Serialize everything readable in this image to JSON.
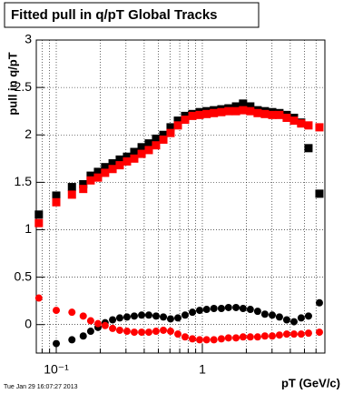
{
  "chart_data": {
    "type": "scatter",
    "title": "Fitted pull in q/pT  Global Tracks",
    "x_label": "pT (GeV/c)",
    "y_label": "pull in q/pT",
    "timestamp": "Tue Jan 29 16:07:27 2013",
    "x_log": true,
    "grid": true,
    "xlim": [
      0.073,
      6.9
    ],
    "ylim": [
      -0.3,
      3
    ],
    "xticks": [
      {
        "value": 0.1,
        "label": "10⁻¹"
      },
      1
    ],
    "xminor_ticks": [
      0.08,
      0.09,
      0.2,
      0.3,
      0.4,
      0.5,
      0.6,
      0.7,
      0.8,
      0.9,
      2,
      3,
      4,
      5,
      6
    ],
    "yticks": [
      0,
      {
        "value": 0.5,
        "label": "0.5"
      },
      1,
      {
        "value": 1.5,
        "label": "1.5"
      },
      2,
      {
        "value": 2.5,
        "label": "2.5"
      },
      3
    ],
    "x": [
      0.076,
      0.1,
      0.128,
      0.153,
      0.172,
      0.193,
      0.216,
      0.243,
      0.272,
      0.305,
      0.342,
      0.384,
      0.43,
      0.482,
      0.541,
      0.606,
      0.68,
      0.762,
      0.855,
      0.958,
      1.07,
      1.2,
      1.35,
      1.51,
      1.7,
      1.9,
      2.13,
      2.39,
      2.68,
      3.01,
      3.37,
      3.78,
      4.24,
      4.75,
      5.33,
      6.33
    ],
    "series": [
      {
        "color": "#000000",
        "marker": "square",
        "values": [
          1.16,
          1.36,
          1.45,
          1.48,
          1.57,
          1.61,
          1.66,
          1.7,
          1.74,
          1.77,
          1.82,
          1.87,
          1.91,
          1.96,
          2.0,
          2.08,
          2.15,
          2.2,
          2.22,
          2.24,
          2.25,
          2.26,
          2.27,
          2.28,
          2.3,
          2.33,
          2.3,
          2.26,
          2.25,
          2.24,
          2.23,
          2.21,
          2.18,
          2.13,
          1.86,
          1.38
        ]
      },
      {
        "color": "#ff0000",
        "marker": "square",
        "values": [
          1.07,
          1.29,
          1.37,
          1.43,
          1.52,
          1.55,
          1.6,
          1.64,
          1.68,
          1.72,
          1.75,
          1.8,
          1.84,
          1.89,
          1.95,
          2.02,
          2.1,
          2.16,
          2.2,
          2.21,
          2.22,
          2.23,
          2.24,
          2.25,
          2.25,
          2.26,
          2.25,
          2.23,
          2.22,
          2.21,
          2.21,
          2.18,
          2.15,
          2.12,
          2.1,
          2.08
        ]
      },
      {
        "color": "#000000",
        "marker": "circle",
        "values": [
          null,
          -0.2,
          -0.16,
          -0.12,
          -0.07,
          -0.03,
          0.02,
          0.05,
          0.07,
          0.08,
          0.09,
          0.1,
          0.1,
          0.09,
          0.08,
          0.06,
          0.07,
          0.1,
          0.13,
          0.15,
          0.16,
          0.17,
          0.17,
          0.18,
          0.18,
          0.17,
          0.16,
          0.14,
          0.11,
          0.1,
          0.08,
          0.05,
          0.03,
          0.07,
          0.09,
          0.23
        ]
      },
      {
        "color": "#ff0000",
        "marker": "circle",
        "values": [
          0.28,
          0.15,
          0.13,
          0.09,
          0.04,
          0.01,
          -0.01,
          -0.04,
          -0.06,
          -0.07,
          -0.08,
          -0.08,
          -0.08,
          -0.07,
          -0.06,
          -0.07,
          -0.1,
          -0.13,
          -0.15,
          -0.16,
          -0.16,
          -0.16,
          -0.15,
          -0.14,
          -0.14,
          -0.13,
          -0.13,
          -0.13,
          -0.12,
          -0.12,
          -0.11,
          -0.1,
          -0.1,
          -0.1,
          -0.09,
          -0.08
        ]
      }
    ]
  }
}
